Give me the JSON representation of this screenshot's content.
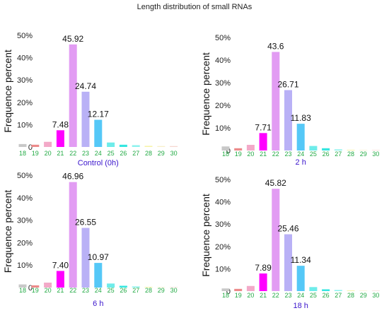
{
  "title": "Length distribution of small RNAs",
  "chart_data": [
    {
      "type": "bar",
      "subtitle": "Control (0h)",
      "ylabel": "Frequence percent",
      "categories": [
        "18",
        "19",
        "20",
        "21",
        "22",
        "23",
        "24",
        "25",
        "26",
        "27",
        "28",
        "29",
        "30"
      ],
      "values": [
        1.3,
        1.0,
        2.3,
        7.48,
        45.92,
        24.74,
        12.17,
        2.0,
        1.0,
        0.8,
        0.5,
        0.4,
        0.4
      ],
      "data_labels": {
        "21": "7.48",
        "22": "45.92",
        "23": "24.74",
        "24": "12.17"
      },
      "ylim": [
        0,
        50
      ],
      "yticks": [
        "0",
        "10%",
        "20%",
        "30%",
        "40%",
        "50%"
      ]
    },
    {
      "type": "bar",
      "subtitle": "2 h",
      "ylabel": "Frequence percent",
      "categories": [
        "18",
        "19",
        "20",
        "21",
        "22",
        "23",
        "24",
        "25",
        "26",
        "27",
        "28",
        "29",
        "30"
      ],
      "values": [
        1.8,
        1.0,
        2.5,
        7.71,
        43.6,
        26.71,
        11.83,
        2.0,
        1.0,
        0.5,
        0.3,
        0.2,
        0.2
      ],
      "data_labels": {
        "21": "7.71",
        "22": "43.6",
        "23": "26.71",
        "24": "11.83"
      },
      "ylim": [
        0,
        50
      ],
      "yticks": [
        "0",
        "10%",
        "20%",
        "30%",
        "40%",
        "50%"
      ]
    },
    {
      "type": "bar",
      "subtitle": "6 h",
      "ylabel": "Frequence percent",
      "categories": [
        "18",
        "19",
        "20",
        "21",
        "22",
        "23",
        "24",
        "25",
        "26",
        "27",
        "28",
        "29",
        "30"
      ],
      "values": [
        1.4,
        1.0,
        2.2,
        7.4,
        46.96,
        26.55,
        10.97,
        1.8,
        0.8,
        0.5,
        0.3,
        0.2,
        0.2
      ],
      "data_labels": {
        "21": "7.40",
        "22": "46.96",
        "23": "26.55",
        "24": "10.97"
      },
      "ylim": [
        0,
        50
      ],
      "yticks": [
        "0",
        "10%",
        "20%",
        "30%",
        "40%",
        "50%"
      ]
    },
    {
      "type": "bar",
      "subtitle": "18 h",
      "ylabel": "Frequence percent",
      "categories": [
        "18",
        "19",
        "20",
        "21",
        "22",
        "23",
        "24",
        "25",
        "26",
        "27",
        "28",
        "29",
        "30"
      ],
      "values": [
        1.2,
        1.0,
        2.3,
        7.89,
        45.82,
        25.46,
        11.34,
        1.8,
        0.8,
        0.5,
        0.3,
        0.2,
        0.2
      ],
      "data_labels": {
        "21": "7.89",
        "22": "45.82",
        "23": "25.46",
        "24": "11.34"
      },
      "ylim": [
        0,
        50
      ],
      "yticks": [
        "0",
        "10%",
        "20%",
        "30%",
        "40%",
        "50%"
      ]
    }
  ],
  "bar_colors": [
    "#c8c8c8",
    "#ec8a8a",
    "#f3a9c8",
    "#ff00ff",
    "#e29cf3",
    "#b9b1f6",
    "#55c8f7",
    "#6eecea",
    "#36e6e0",
    "#8ef2ee",
    "#f7f3a8",
    "#f7efc8",
    "#f6d6d0"
  ],
  "tick_label_color": "#22aa44",
  "subtitle_color": "#3a14cc"
}
